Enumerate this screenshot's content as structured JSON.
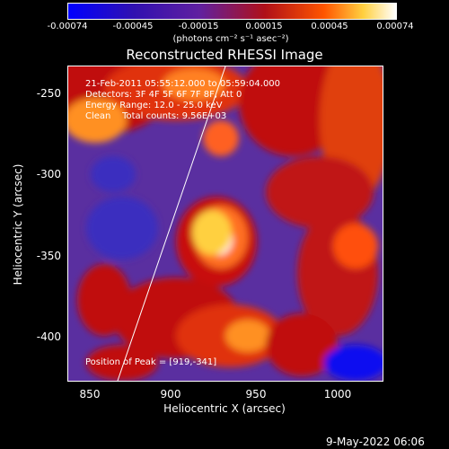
{
  "colorbar": {
    "ticks": [
      "-0.00074",
      "-0.00045",
      "-0.00015",
      "0.00015",
      "0.00045",
      "0.00074"
    ],
    "units": "(photons cm⁻² s⁻¹ asec⁻²)"
  },
  "title": "Reconstructed RHESSI Image",
  "info": {
    "time": "21-Feb-2011 05:55:12.000 to 05:59:04.000",
    "detectors": "Detectors: 3F 4F 5F 6F 7F 8F, Att 0",
    "energy": "Energy Range: 12.0 - 25.0 keV",
    "clean": "Clean    Total counts: 9.56E+03"
  },
  "peak": "Position of Peak = [919,-341]",
  "date": "9-May-2022 06:06",
  "chart_data": {
    "type": "heatmap",
    "title": "Reconstructed RHESSI Image",
    "xlabel": "Heliocentric X (arcsec)",
    "ylabel": "Heliocentric Y (arcsec)",
    "x_ticks": [
      "850",
      "900",
      "950",
      "1000"
    ],
    "y_ticks": [
      "-250",
      "-300",
      "-350",
      "-400"
    ],
    "xlim": [
      831,
      1027
    ],
    "ylim": [
      -425,
      -237
    ],
    "color_range": [
      -0.00074,
      0.00074
    ],
    "peak": [
      919,
      -341
    ]
  },
  "colors": {
    "low": "#0000ff",
    "mid": "#6020a0",
    "high": "#ffffff"
  }
}
